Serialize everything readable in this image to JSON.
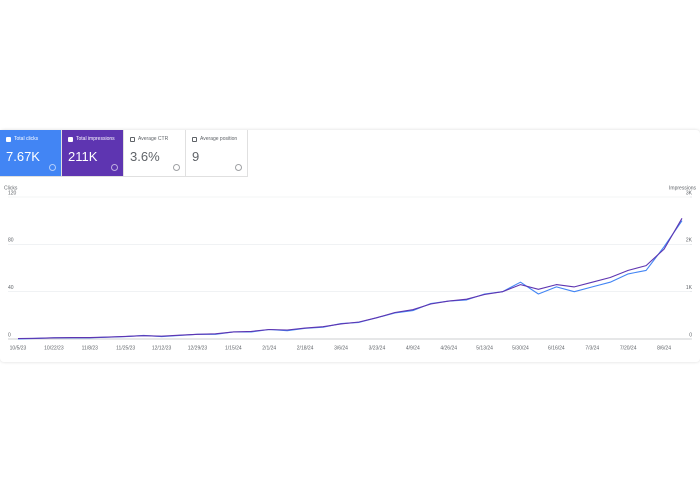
{
  "metrics": [
    {
      "label": "Total clicks",
      "value": "7.67K"
    },
    {
      "label": "Total impressions",
      "value": "211K"
    },
    {
      "label": "Average CTR",
      "value": "3.6%"
    },
    {
      "label": "Average position",
      "value": "9"
    }
  ],
  "chart_data": {
    "type": "line",
    "y_label": "Clicks",
    "y2_label": "Impressions",
    "categories": [
      "10/5/23",
      null,
      "10/22/23",
      null,
      "11/8/23",
      null,
      "11/25/23",
      null,
      "12/12/23",
      null,
      "12/29/23",
      null,
      "1/15/24",
      null,
      "2/1/24",
      null,
      "2/18/24",
      null,
      "3/6/24",
      null,
      "3/23/24",
      null,
      "4/9/24",
      null,
      "4/26/24",
      null,
      "5/13/24",
      null,
      "5/30/24",
      null,
      "6/16/24",
      null,
      "7/3/24",
      null,
      "7/20/24",
      null,
      "8/6/24",
      null
    ],
    "series": [
      {
        "name": "Clicks",
        "color": "#4285f4",
        "values": [
          0,
          0.5,
          1,
          1,
          1,
          1.5,
          2,
          3,
          2,
          3,
          4,
          4,
          6,
          6,
          8,
          7,
          9,
          10,
          13,
          14,
          18,
          22,
          24,
          30,
          32,
          33,
          38,
          40,
          48,
          38,
          44,
          40,
          44,
          48,
          55,
          58,
          78,
          100
        ]
      },
      {
        "name": "Impressions",
        "color": "#5e35b1",
        "axis": "y2",
        "values": [
          10,
          15,
          25,
          30,
          30,
          40,
          55,
          70,
          60,
          80,
          100,
          110,
          150,
          160,
          200,
          190,
          230,
          260,
          320,
          360,
          450,
          560,
          620,
          740,
          800,
          840,
          940,
          1000,
          1150,
          1050,
          1150,
          1100,
          1200,
          1300,
          1450,
          1550,
          1900,
          2550
        ]
      }
    ],
    "ylim": [
      0,
      120
    ],
    "yticks": [
      0,
      40,
      80,
      120
    ],
    "y2lim": [
      0,
      3000
    ],
    "y2ticks": [
      0,
      {
        "value": 1000,
        "label": "1K"
      },
      {
        "value": 2000,
        "label": "2K"
      },
      {
        "value": 3000,
        "label": "3K"
      }
    ],
    "grid": true
  }
}
